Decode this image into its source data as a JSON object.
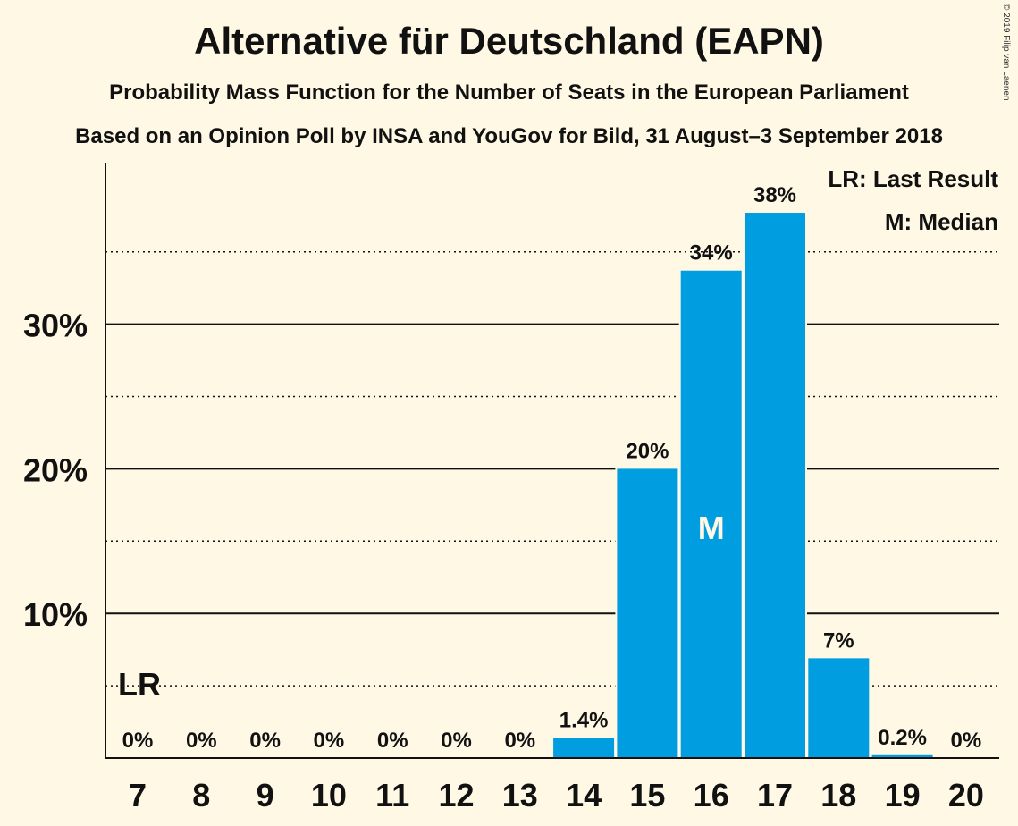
{
  "header": {
    "title": "Alternative für Deutschland (EAPN)",
    "subtitle1": "Probability Mass Function for the Number of Seats in the European Parliament",
    "subtitle2": "Based on an Opinion Poll by INSA and YouGov for Bild, 31 August–3 September 2018",
    "copyright": "© 2019 Filip van Laenen"
  },
  "legend": {
    "last_result": "LR: Last Result",
    "median": "M: Median"
  },
  "chart_data": {
    "type": "bar",
    "title": "Alternative für Deutschland (EAPN)",
    "xlabel": "",
    "ylabel": "",
    "categories": [
      "7",
      "8",
      "9",
      "10",
      "11",
      "12",
      "13",
      "14",
      "15",
      "16",
      "17",
      "18",
      "19",
      "20"
    ],
    "values": [
      0,
      0,
      0,
      0,
      0,
      0,
      0,
      1.4,
      20,
      33.7,
      37.7,
      6.9,
      0.2,
      0
    ],
    "value_labels": [
      "0%",
      "0%",
      "0%",
      "0%",
      "0%",
      "0%",
      "0%",
      "1.4%",
      "20%",
      "34%",
      "38%",
      "7%",
      "0.2%",
      "0%"
    ],
    "ylim": [
      0,
      41
    ],
    "yticks": [
      10,
      20,
      30
    ],
    "ytick_labels": [
      "10%",
      "20%",
      "30%"
    ],
    "minor_gridlines": [
      5,
      15,
      25,
      35
    ],
    "last_result_category": "7",
    "last_result_label": "LR",
    "median_category": "16",
    "median_label": "M",
    "bar_color": "#009ee0",
    "grid": true,
    "legend_position": "top-right"
  }
}
